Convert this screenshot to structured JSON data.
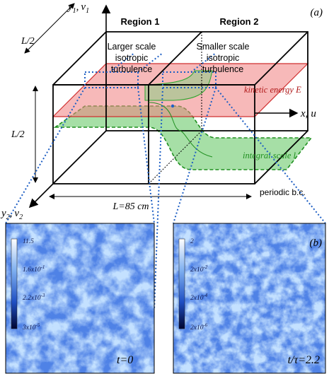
{
  "panel_a": {
    "label": "(a)",
    "regions": [
      "Region 1",
      "Region 2"
    ],
    "region1_desc": [
      "Larger scale",
      "isotropic",
      "turbulence"
    ],
    "region2_desc": [
      "Smaller scale",
      "isotropic",
      "turbulence"
    ],
    "kinetic_energy_label": "kinetic energy E",
    "integral_scale_label": "integral scale l",
    "axis_x": {
      "var": "x",
      "sep": ",",
      "vel": "u"
    },
    "axis_y1": {
      "var": "y",
      "sub": "1",
      "sep": ",",
      "vel": "v",
      "vsub": "1"
    },
    "axis_y2": {
      "var": "y",
      "sub": "2",
      "sep": ",",
      "vel": "v",
      "vsub": "2"
    },
    "dim_top": "L/2",
    "dim_side": "L/2",
    "length_label": "L=85 cm",
    "boundary_label": "periodic b.c.",
    "colors": {
      "kinetic": "#e8453c",
      "integral": "#2ea52e",
      "dotted": "#1e5fc4"
    }
  },
  "panel_b": {
    "label": "(b)",
    "left": {
      "time_label": "t=0",
      "colorbar": [
        "11.5",
        "1.6x10",
        "2.2x10",
        "3x10"
      ],
      "colorbar_exp": [
        "",
        "-1",
        "-3",
        "-5"
      ]
    },
    "right": {
      "time_label": "t/τ=2.2",
      "colorbar": [
        "2",
        "2x10",
        "2x10",
        "2x10"
      ],
      "colorbar_exp": [
        "",
        "-2",
        "-4",
        "-6"
      ]
    }
  }
}
